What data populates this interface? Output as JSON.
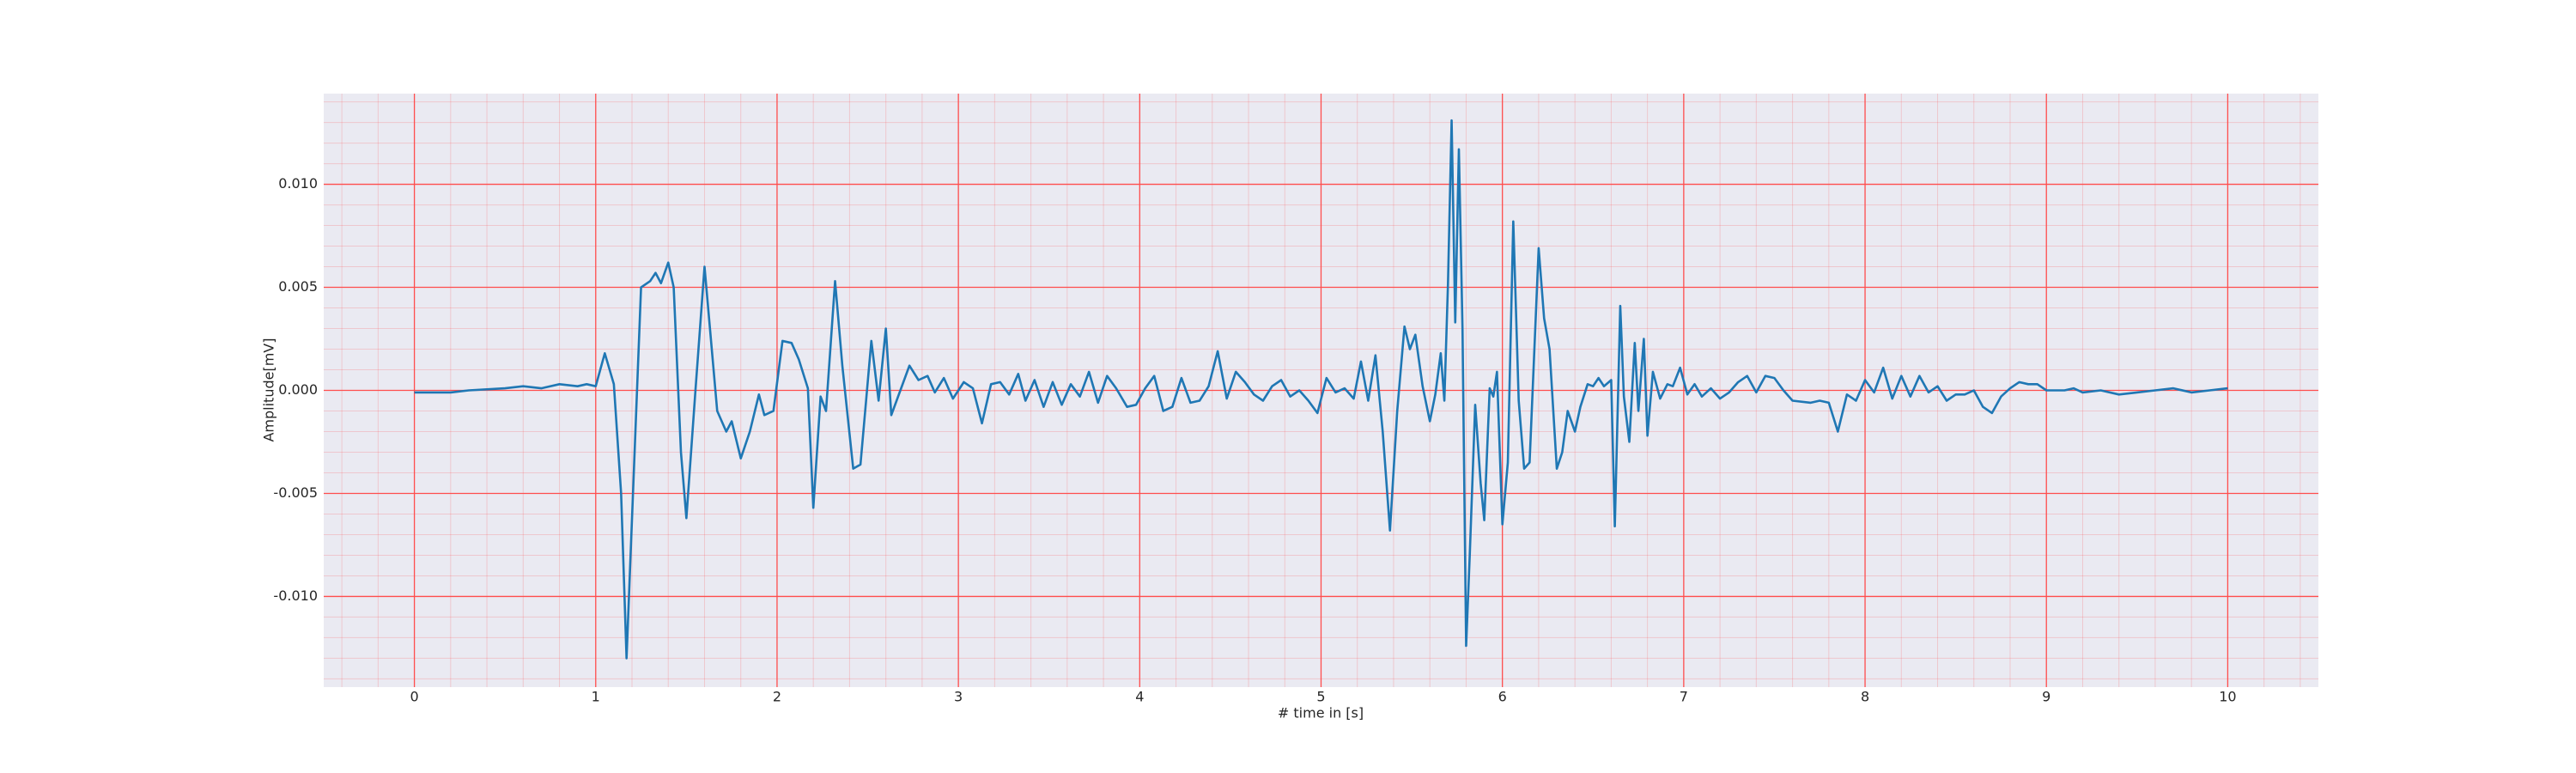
{
  "chart_data": {
    "type": "line",
    "xlabel": "# time in [s]",
    "ylabel": "Amplitude[mV]",
    "xlim": [
      -0.5,
      10.5
    ],
    "ylim": [
      -0.0144,
      0.0144
    ],
    "xticks": [
      0,
      1,
      2,
      3,
      4,
      5,
      6,
      7,
      8,
      9,
      10
    ],
    "yticks": [
      {
        "value": -0.01,
        "label": "-0.010"
      },
      {
        "value": -0.005,
        "label": "-0.005"
      },
      {
        "value": 0,
        "label": "0.000"
      },
      {
        "value": 0.005,
        "label": "0.005"
      },
      {
        "value": 0.01,
        "label": "0.010"
      }
    ],
    "grid": true,
    "minor_grid": true,
    "grid_color": "#ff4d4d",
    "background": "#eaeaf2",
    "series": [
      {
        "color": "#1f77b4",
        "x": [
          0,
          0.2,
          0.3,
          0.5,
          0.6,
          0.7,
          0.8,
          0.9,
          0.95,
          1.0,
          1.05,
          1.1,
          1.14,
          1.17,
          1.21,
          1.25,
          1.3,
          1.33,
          1.36,
          1.4,
          1.43,
          1.47,
          1.5,
          1.55,
          1.6,
          1.63,
          1.67,
          1.72,
          1.75,
          1.8,
          1.85,
          1.9,
          1.93,
          1.98,
          2.03,
          2.08,
          2.12,
          2.17,
          2.2,
          2.24,
          2.27,
          2.32,
          2.36,
          2.42,
          2.46,
          2.52,
          2.56,
          2.6,
          2.63,
          2.68,
          2.73,
          2.78,
          2.83,
          2.87,
          2.92,
          2.97,
          3.03,
          3.08,
          3.13,
          3.18,
          3.23,
          3.28,
          3.33,
          3.37,
          3.42,
          3.47,
          3.52,
          3.57,
          3.62,
          3.67,
          3.72,
          3.77,
          3.82,
          3.87,
          3.93,
          3.98,
          4.03,
          4.08,
          4.13,
          4.18,
          4.23,
          4.28,
          4.33,
          4.38,
          4.43,
          4.48,
          4.53,
          4.58,
          4.63,
          4.68,
          4.73,
          4.78,
          4.83,
          4.88,
          4.93,
          4.98,
          5.03,
          5.08,
          5.13,
          5.18,
          5.22,
          5.26,
          5.3,
          5.34,
          5.38,
          5.42,
          5.46,
          5.49,
          5.52,
          5.56,
          5.6,
          5.63,
          5.66,
          5.68,
          5.7,
          5.72,
          5.74,
          5.76,
          5.78,
          5.8,
          5.82,
          5.85,
          5.88,
          5.9,
          5.93,
          5.95,
          5.97,
          6.0,
          6.03,
          6.06,
          6.09,
          6.12,
          6.15,
          6.2,
          6.23,
          6.26,
          6.3,
          6.33,
          6.36,
          6.4,
          6.43,
          6.47,
          6.5,
          6.53,
          6.56,
          6.6,
          6.62,
          6.65,
          6.67,
          6.7,
          6.73,
          6.75,
          6.78,
          6.8,
          6.83,
          6.87,
          6.91,
          6.94,
          6.98,
          7.02,
          7.06,
          7.1,
          7.15,
          7.2,
          7.25,
          7.3,
          7.35,
          7.4,
          7.45,
          7.5,
          7.55,
          7.6,
          7.7,
          7.75,
          7.8,
          7.85,
          7.9,
          7.95,
          8.0,
          8.05,
          8.1,
          8.15,
          8.2,
          8.25,
          8.3,
          8.35,
          8.4,
          8.45,
          8.5,
          8.55,
          8.6,
          8.65,
          8.7,
          8.75,
          8.8,
          8.85,
          8.9,
          8.95,
          9.0,
          9.1,
          9.15,
          9.2,
          9.3,
          9.4,
          9.5,
          9.6,
          9.7,
          9.8,
          9.9,
          10.0
        ],
        "values": [
          -0.0001,
          -0.0001,
          0,
          0.0001,
          0.0002,
          0.0001,
          0.0003,
          0.0002,
          0.0003,
          0.0002,
          0.0018,
          0.0003,
          -0.005,
          -0.013,
          -0.004,
          0.005,
          0.0053,
          0.0057,
          0.0052,
          0.0062,
          0.005,
          -0.003,
          -0.0062,
          0.0,
          0.006,
          0.003,
          -0.001,
          -0.002,
          -0.0015,
          -0.0033,
          -0.002,
          -0.0002,
          -0.0012,
          -0.001,
          0.0024,
          0.0023,
          0.0015,
          0.0001,
          -0.0057,
          -0.0003,
          -0.001,
          0.0053,
          0.0012,
          -0.0038,
          -0.0036,
          0.0024,
          -0.0005,
          0.003,
          -0.0012,
          0.0,
          0.0012,
          0.0005,
          0.0007,
          -0.0001,
          0.0006,
          -0.0004,
          0.0004,
          0.0001,
          -0.0016,
          0.0003,
          0.0004,
          -0.0002,
          0.0008,
          -0.0005,
          0.0005,
          -0.0008,
          0.0004,
          -0.0007,
          0.0003,
          -0.0003,
          0.0009,
          -0.0006,
          0.0007,
          0.0001,
          -0.0008,
          -0.0007,
          0.0001,
          0.0007,
          -0.001,
          -0.0008,
          0.0006,
          -0.0006,
          -0.0005,
          0.0002,
          0.0019,
          -0.0004,
          0.0009,
          0.0004,
          -0.0002,
          -0.0005,
          0.0002,
          0.0005,
          -0.0003,
          0.0,
          -0.0005,
          -0.0011,
          0.0006,
          -0.0001,
          0.0001,
          -0.0004,
          0.0014,
          -0.0005,
          0.0017,
          -0.002,
          -0.0068,
          -0.001,
          0.0031,
          0.002,
          0.0027,
          0.0002,
          -0.0015,
          -0.0002,
          0.0018,
          -0.0005,
          0.0052,
          0.0131,
          0.0033,
          0.0117,
          0.003,
          -0.0124,
          -0.008,
          -0.0007,
          -0.0045,
          -0.0063,
          0.0001,
          -0.0003,
          0.0009,
          -0.0065,
          -0.0035,
          0.0082,
          -0.0005,
          -0.0038,
          -0.0035,
          0.0069,
          0.0035,
          0.002,
          -0.0038,
          -0.003,
          -0.001,
          -0.002,
          -0.0008,
          0.0003,
          0.0002,
          0.0006,
          0.0002,
          0.0005,
          -0.0066,
          0.0041,
          -0.0003,
          -0.0025,
          0.0023,
          -0.001,
          0.0025,
          -0.0022,
          0.0009,
          -0.0004,
          0.0003,
          0.0002,
          0.0011,
          -0.0002,
          0.0003,
          -0.0003,
          0.0001,
          -0.0004,
          -0.0001,
          0.0004,
          0.0007,
          -0.0001,
          0.0007,
          0.0006,
          0.0,
          -0.0005,
          -0.0006,
          -0.0005,
          -0.0006,
          -0.002,
          -0.0002,
          -0.0005,
          0.0005,
          -0.0001,
          0.0011,
          -0.0004,
          0.0007,
          -0.0003,
          0.0007,
          -0.0001,
          0.0002,
          -0.0005,
          -0.0002,
          -0.0002,
          0.0,
          -0.0008,
          -0.0011,
          -0.0003,
          0.0001,
          0.0004,
          0.0003,
          0.0003,
          0.0,
          0.0,
          0.0001,
          -0.0001,
          0.0,
          -0.0002,
          -0.0001,
          0.0,
          0.0001,
          -0.0001,
          0.0,
          0.0001
        ]
      }
    ]
  }
}
